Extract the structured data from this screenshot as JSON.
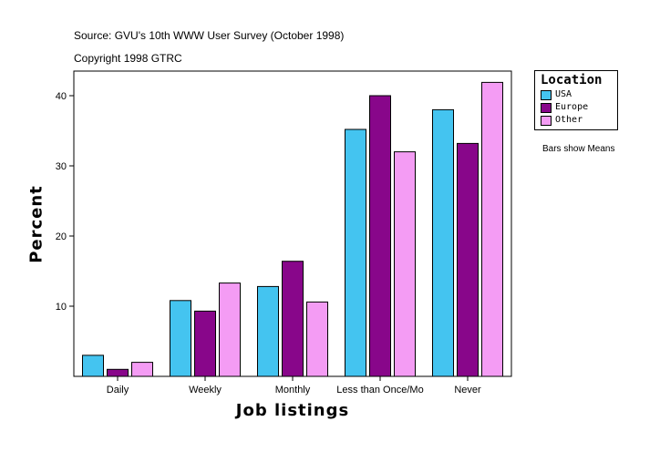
{
  "header": {
    "source": "Source: GVU's 10th WWW User Survey (October 1998)",
    "copyright": "Copyright 1998 GTRC"
  },
  "legend": {
    "title": "Location",
    "items": [
      {
        "label": "USA",
        "color": "#44c4f0"
      },
      {
        "label": "Europe",
        "color": "#88068a"
      },
      {
        "label": "Other",
        "color": "#f49cf4"
      }
    ]
  },
  "note": "Bars show Means",
  "chart_data": {
    "type": "bar",
    "title": "",
    "xlabel": "Job listings",
    "ylabel": "Percent",
    "categories": [
      "Daily",
      "Weekly",
      "Monthly",
      "Less than Once/Mo",
      "Never"
    ],
    "series": [
      {
        "name": "USA",
        "color": "#44c4f0",
        "values": [
          3.0,
          10.8,
          12.8,
          35.2,
          38.0
        ]
      },
      {
        "name": "Europe",
        "color": "#88068a",
        "values": [
          1.0,
          9.3,
          16.4,
          40.0,
          33.2
        ]
      },
      {
        "name": "Other",
        "color": "#f49cf4",
        "values": [
          2.0,
          13.3,
          10.6,
          32.0,
          41.9
        ]
      }
    ],
    "yticks": [
      10,
      20,
      30,
      40
    ],
    "ylim": [
      0,
      43.5
    ],
    "grid": false,
    "legend_position": "top-right (outside plot)"
  }
}
